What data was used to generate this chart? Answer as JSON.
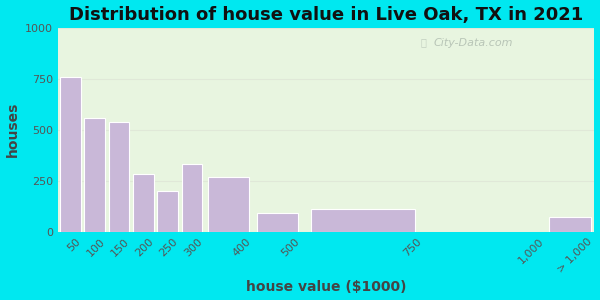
{
  "title": "Distribution of house value in Live Oak, TX in 2021",
  "xlabel": "house value ($1000)",
  "ylabel": "houses",
  "bar_labels": [
    "50",
    "100",
    "150",
    "200",
    "250",
    "300",
    "400",
    "500",
    "750",
    "1,000",
    "> 1,000"
  ],
  "bar_left_edges": [
    0,
    50,
    100,
    150,
    200,
    250,
    300,
    400,
    500,
    750,
    1000
  ],
  "bar_right_edges": [
    50,
    100,
    150,
    200,
    250,
    300,
    400,
    500,
    750,
    1000,
    1100
  ],
  "bar_values": [
    760,
    560,
    540,
    285,
    200,
    330,
    270,
    90,
    110,
    0,
    70
  ],
  "bar_color": "#c9b8d8",
  "bar_edge_color": "#ffffff",
  "bg_outer": "#00e8f0",
  "bg_plot": "#e8f5e0",
  "ylim": [
    0,
    1000
  ],
  "yticks": [
    0,
    250,
    500,
    750,
    1000
  ],
  "xlim_left": 0,
  "xlim_right": 1100,
  "xtick_positions": [
    50,
    100,
    150,
    200,
    250,
    300,
    400,
    500,
    750,
    1000,
    1100
  ],
  "xtick_labels": [
    "50",
    "100",
    "150",
    "200",
    "250",
    "300",
    "400",
    "500",
    "750",
    "1,000",
    "> 1,000"
  ],
  "title_fontsize": 13,
  "axis_label_fontsize": 10,
  "tick_fontsize": 8,
  "watermark_text": "City-Data.com",
  "watermark_color": "#b0bdb0",
  "grid_color": "#e0e8d8"
}
